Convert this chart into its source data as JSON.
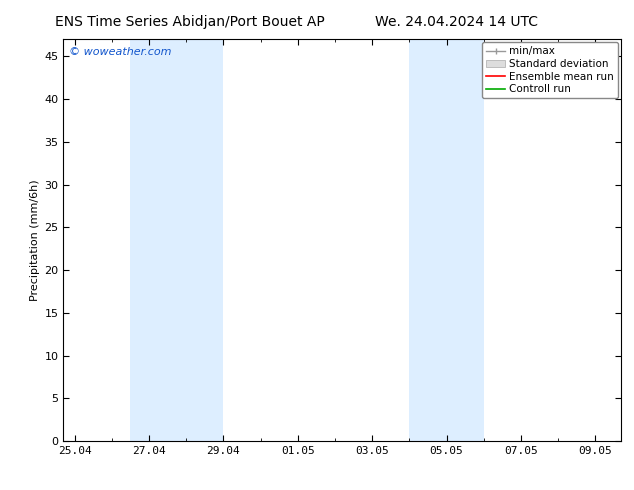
{
  "title_left": "ENS Time Series Abidjan/Port Bouet AP",
  "title_right": "We. 24.04.2024 14 UTC",
  "ylabel": "Precipitation (mm/6h)",
  "watermark": "© woweather.com",
  "ylim": [
    0,
    47
  ],
  "yticks": [
    0,
    5,
    10,
    15,
    20,
    25,
    30,
    35,
    40,
    45
  ],
  "xtick_labels": [
    "25.04",
    "27.04",
    "29.04",
    "01.05",
    "03.05",
    "05.05",
    "07.05",
    "09.05"
  ],
  "xtick_positions": [
    0,
    2,
    4,
    6,
    8,
    10,
    12,
    14
  ],
  "xlim": [
    -0.3,
    14.7
  ],
  "shaded_bands": [
    {
      "x_start": 1.5,
      "x_end": 3.0,
      "color": "#ddeeff"
    },
    {
      "x_start": 3.0,
      "x_end": 4.0,
      "color": "#ddeeff"
    },
    {
      "x_start": 9.0,
      "x_end": 10.0,
      "color": "#ddeeff"
    },
    {
      "x_start": 10.0,
      "x_end": 11.0,
      "color": "#ddeeff"
    }
  ],
  "legend_labels": [
    "min/max",
    "Standard deviation",
    "Ensemble mean run",
    "Controll run"
  ],
  "legend_line_colors": [
    "#999999",
    "#cccccc",
    "#ff0000",
    "#00aa00"
  ],
  "title_fontsize": 10,
  "axis_label_fontsize": 8,
  "tick_fontsize": 8,
  "legend_fontsize": 7.5,
  "watermark_color": "#1155cc",
  "background_color": "#ffffff",
  "plot_bg_color": "#ffffff"
}
